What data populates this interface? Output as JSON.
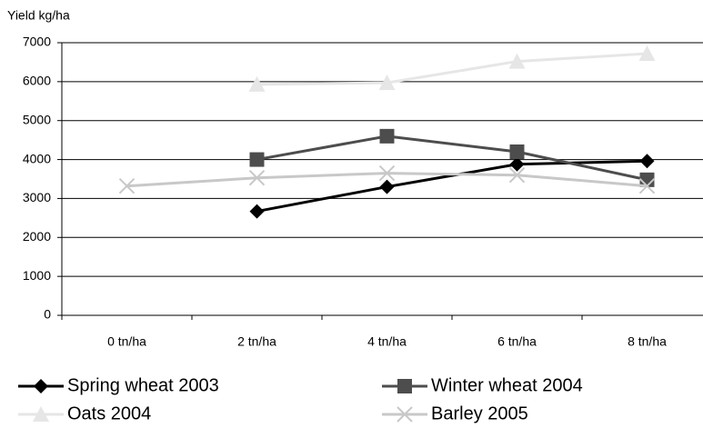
{
  "chart_data": {
    "type": "line",
    "y_axis_label": "Yield kg/ha",
    "categories": [
      "0 tn/ha",
      "2 tn/ha",
      "4 tn/ha",
      "6 tn/ha",
      "8 tn/ha"
    ],
    "series": [
      {
        "name": "Spring wheat 2003",
        "color": "#000000",
        "marker": "diamond",
        "values": [
          null,
          2670,
          3300,
          3880,
          3960
        ]
      },
      {
        "name": "Winter wheat 2004",
        "color": "#4d4d4d",
        "marker": "square",
        "values": [
          null,
          4000,
          4600,
          4200,
          3480
        ]
      },
      {
        "name": "Oats 2004",
        "color": "#e6e6e6",
        "marker": "triangle",
        "values": [
          null,
          5930,
          5970,
          6520,
          6720
        ]
      },
      {
        "name": "Barley 2005",
        "color": "#c8c8c8",
        "marker": "x",
        "values": [
          3320,
          3530,
          3650,
          3600,
          3320
        ]
      }
    ],
    "ylim": [
      0,
      7000
    ],
    "yticks": [
      0,
      1000,
      2000,
      3000,
      4000,
      5000,
      6000,
      7000
    ],
    "grid": true
  }
}
